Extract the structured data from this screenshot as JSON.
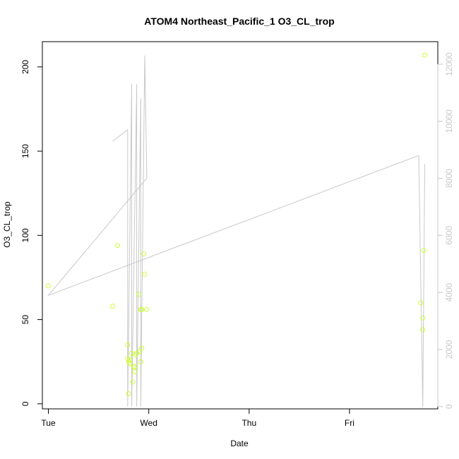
{
  "chart_data": {
    "type": "scatter",
    "title": "ATOM4 Northeast_Pacific_1 O3_CL_trop",
    "xlabel": "Date",
    "ylabel": "O3_CL_trop",
    "x_ticks": [
      "Tue",
      "Wed",
      "Thu",
      "Fri"
    ],
    "xlim": [
      -0.06,
      3.88
    ],
    "ylim": [
      -3,
      215
    ],
    "y_ticks": [
      0,
      50,
      100,
      150,
      200
    ],
    "y2lim": [
      -80,
      12790
    ],
    "y2_ticks": [
      0,
      2000,
      4000,
      6000,
      8000,
      10000,
      12000
    ],
    "grid": false,
    "legend": "none",
    "colors": {
      "points": "#ccff33",
      "line": "#c8c8c8",
      "axis": "#000000",
      "right_axis": "#c8c8c8"
    },
    "series": [
      {
        "axis": "left",
        "kind": "points",
        "x": [
          0.0,
          0.64,
          0.69,
          0.79,
          0.79,
          0.8,
          0.8,
          0.81,
          0.81,
          0.83,
          0.84,
          0.85,
          0.86,
          0.86,
          0.87,
          0.88,
          0.9,
          0.91,
          0.92,
          0.92,
          0.93,
          0.93,
          0.95,
          0.96,
          0.98,
          3.71,
          3.73,
          3.73,
          3.74,
          3.75
        ],
        "y": [
          70,
          58,
          94,
          35,
          27,
          25,
          6,
          26,
          24,
          30,
          13,
          22,
          19,
          22,
          29,
          30,
          65,
          31,
          25,
          56,
          33,
          56,
          89,
          77,
          56,
          60,
          51,
          44,
          91,
          207
        ]
      },
      {
        "axis": "right",
        "kind": "line",
        "x": [
          0.64,
          0.79,
          0.79,
          0.83,
          0.83,
          0.88,
          0.88,
          0.92,
          0.92,
          0.96,
          0.98,
          0.98,
          0.0,
          3.69,
          3.73,
          3.75
        ],
        "y": [
          9300,
          9700,
          0,
          11300,
          0,
          11300,
          0,
          10800,
          0,
          12300,
          8200,
          8000,
          3900,
          8800,
          0,
          8500
        ]
      }
    ]
  }
}
